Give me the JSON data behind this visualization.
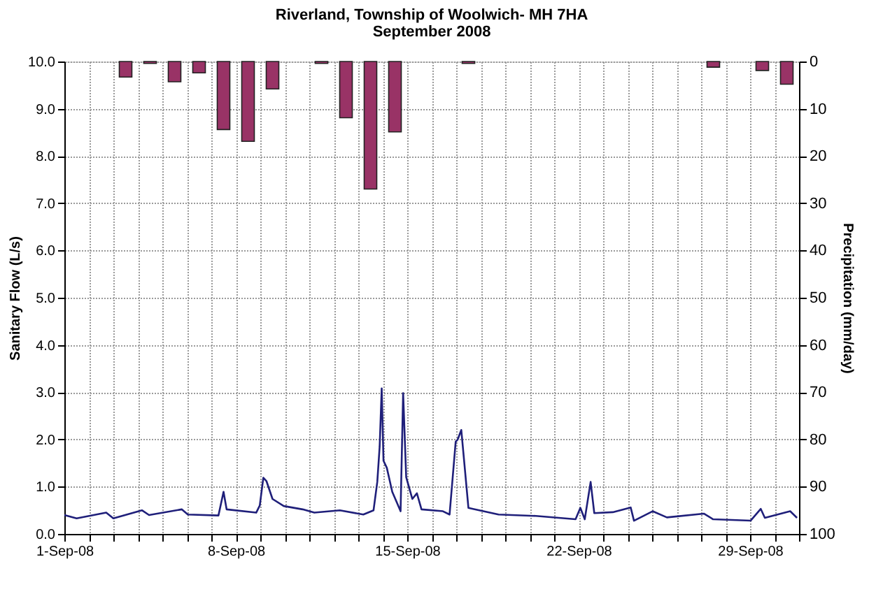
{
  "chart_data": {
    "type": "line",
    "title": "Riverland,  Township of Woolwich- MH 7HA",
    "subtitle": "September 2008",
    "ylabel": "Sanitary Flow (L/s)",
    "y2label": "Precipitation (mm/day)",
    "xlim": [
      "2008-09-01",
      "2008-10-01"
    ],
    "xticks": [
      {
        "value": "2008-09-01",
        "label": "1-Sep-08"
      },
      {
        "value": "2008-09-02",
        "label": null
      },
      {
        "value": "2008-09-03",
        "label": null
      },
      {
        "value": "2008-09-04",
        "label": null
      },
      {
        "value": "2008-09-05",
        "label": null
      },
      {
        "value": "2008-09-06",
        "label": null
      },
      {
        "value": "2008-09-07",
        "label": null
      },
      {
        "value": "2008-09-08",
        "label": "8-Sep-08"
      },
      {
        "value": "2008-09-09",
        "label": null
      },
      {
        "value": "2008-09-10",
        "label": null
      },
      {
        "value": "2008-09-11",
        "label": null
      },
      {
        "value": "2008-09-12",
        "label": null
      },
      {
        "value": "2008-09-13",
        "label": null
      },
      {
        "value": "2008-09-14",
        "label": null
      },
      {
        "value": "2008-09-15",
        "label": "15-Sep-08"
      },
      {
        "value": "2008-09-16",
        "label": null
      },
      {
        "value": "2008-09-17",
        "label": null
      },
      {
        "value": "2008-09-18",
        "label": null
      },
      {
        "value": "2008-09-19",
        "label": null
      },
      {
        "value": "2008-09-20",
        "label": null
      },
      {
        "value": "2008-09-21",
        "label": null
      },
      {
        "value": "2008-09-22",
        "label": "22-Sep-08"
      },
      {
        "value": "2008-09-23",
        "label": null
      },
      {
        "value": "2008-09-24",
        "label": null
      },
      {
        "value": "2008-09-25",
        "label": null
      },
      {
        "value": "2008-09-26",
        "label": null
      },
      {
        "value": "2008-09-27",
        "label": null
      },
      {
        "value": "2008-09-28",
        "label": null
      },
      {
        "value": "2008-09-29",
        "label": "29-Sep-08"
      },
      {
        "value": "2008-09-30",
        "label": null
      },
      {
        "value": "2008-10-01",
        "label": null
      }
    ],
    "ylim": [
      0,
      10
    ],
    "yticks": [
      {
        "value": 0,
        "label": "0.0"
      },
      {
        "value": 1,
        "label": "1.0"
      },
      {
        "value": 2,
        "label": "2.0"
      },
      {
        "value": 3,
        "label": "3.0"
      },
      {
        "value": 4,
        "label": "4.0"
      },
      {
        "value": 5,
        "label": "5.0"
      },
      {
        "value": 6,
        "label": "6.0"
      },
      {
        "value": 7,
        "label": "7.0"
      },
      {
        "value": 8,
        "label": "8.0"
      },
      {
        "value": 9,
        "label": "9.0"
      },
      {
        "value": 10,
        "label": "10.0"
      }
    ],
    "y2lim": [
      100,
      0
    ],
    "y2ticks": [
      {
        "value": 0,
        "label": "0"
      },
      {
        "value": 10,
        "label": "10"
      },
      {
        "value": 20,
        "label": "20"
      },
      {
        "value": 30,
        "label": "30"
      },
      {
        "value": 40,
        "label": "40"
      },
      {
        "value": 50,
        "label": "50"
      },
      {
        "value": 60,
        "label": "60"
      },
      {
        "value": 70,
        "label": "70"
      },
      {
        "value": 80,
        "label": "80"
      },
      {
        "value": 90,
        "label": "90"
      },
      {
        "value": 100,
        "label": "100"
      }
    ],
    "grid": true,
    "marker": "none",
    "line_style": "solid",
    "series": [
      {
        "color": "#1f1f7a",
        "x": [
          "2008-09-01T00:00",
          "2008-09-01T12:00",
          "2008-09-02T17:00",
          "2008-09-03T00:00",
          "2008-09-04T04:00",
          "2008-09-04T11:00",
          "2008-09-05T19:00",
          "2008-09-06T01:00",
          "2008-09-07T07:00",
          "2008-09-07T12:00",
          "2008-09-07T15:00",
          "2008-09-08T20:00",
          "2008-09-08T23:30",
          "2008-09-09T03:00",
          "2008-09-09T06:00",
          "2008-09-09T12:00",
          "2008-09-09T23:00",
          "2008-09-10T17:30",
          "2008-09-11T05:00",
          "2008-09-12T06:00",
          "2008-09-13T05:00",
          "2008-09-13T15:00",
          "2008-09-13T18:40",
          "2008-09-13T21:00",
          "2008-09-13T23:00",
          "2008-09-14T00:45",
          "2008-09-14T04:00",
          "2008-09-14T09:20",
          "2008-09-14T17:30",
          "2008-09-14T20:00",
          "2008-09-14T23:00",
          "2008-09-15T05:00",
          "2008-09-15T09:30",
          "2008-09-15T14:00",
          "2008-09-16T11:00",
          "2008-09-16T17:30",
          "2008-09-16T23:30",
          "2008-09-17T01:30",
          "2008-09-17T05:00",
          "2008-09-17T07:00",
          "2008-09-17T12:00",
          "2008-09-17T16:30",
          "2008-09-18T17:30",
          "2008-09-20T06:00",
          "2008-09-21T21:00",
          "2008-09-22T01:40",
          "2008-09-22T06:00",
          "2008-09-22T11:45",
          "2008-09-22T15:20",
          "2008-09-23T09:30",
          "2008-09-24T03:00",
          "2008-09-24T06:15",
          "2008-09-25T00:30",
          "2008-09-25T14:30",
          "2008-09-27T02:40",
          "2008-09-27T11:45",
          "2008-09-29T00:30",
          "2008-09-29T10:30",
          "2008-09-29T14:30",
          "2008-09-30T15:20",
          "2008-09-30T22:00"
        ],
        "values": [
          0.4,
          0.33,
          0.45,
          0.33,
          0.5,
          0.4,
          0.52,
          0.41,
          0.39,
          0.89,
          0.52,
          0.45,
          0.6,
          1.19,
          1.12,
          0.74,
          0.59,
          0.52,
          0.45,
          0.5,
          0.41,
          0.5,
          1.1,
          1.85,
          3.08,
          1.55,
          1.4,
          0.89,
          0.48,
          2.98,
          1.2,
          0.74,
          0.86,
          0.52,
          0.48,
          0.41,
          1.95,
          2.0,
          2.2,
          1.73,
          0.55,
          0.53,
          0.41,
          0.38,
          0.31,
          0.55,
          0.31,
          1.1,
          0.44,
          0.46,
          0.56,
          0.28,
          0.48,
          0.35,
          0.43,
          0.31,
          0.28,
          0.53,
          0.34,
          0.48,
          0.34
        ]
      },
      {
        "type": "bar",
        "axis": "y2",
        "color": "#993366",
        "x": [
          "2008-09-03T12:00",
          "2008-09-04T12:00",
          "2008-09-05T12:00",
          "2008-09-06T12:00",
          "2008-09-07T12:00",
          "2008-09-08T12:00",
          "2008-09-09T12:00",
          "2008-09-11T12:00",
          "2008-09-12T12:00",
          "2008-09-13T12:00",
          "2008-09-14T12:00",
          "2008-09-17T12:00",
          "2008-09-27T12:00",
          "2008-09-29T12:00",
          "2008-09-30T12:00"
        ],
        "values": [
          3.3,
          0.4,
          4.3,
          2.4,
          14.4,
          16.9,
          5.8,
          0.4,
          11.9,
          27.0,
          14.9,
          0.4,
          1.2,
          1.9,
          4.8
        ]
      }
    ]
  }
}
